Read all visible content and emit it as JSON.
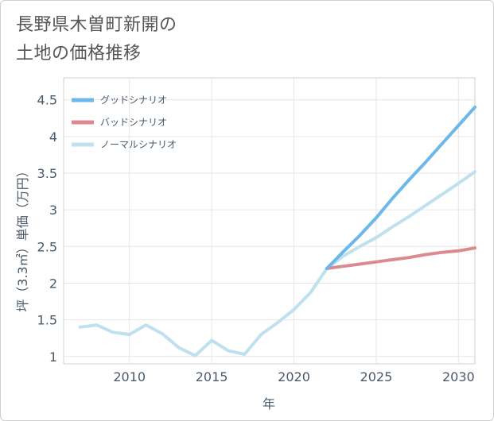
{
  "title": {
    "line1": "長野県木曽町新開の",
    "line2": "土地の価格推移"
  },
  "chart_data": {
    "type": "line",
    "xlabel": "年",
    "ylabel": "坪（3.3㎡）単価（万円）",
    "xlim": [
      2006,
      2031
    ],
    "ylim": [
      0.9,
      4.8
    ],
    "x_ticks": [
      2010,
      2015,
      2020,
      2025,
      2030
    ],
    "y_ticks": [
      1,
      1.5,
      2,
      2.5,
      3,
      3.5,
      4,
      4.5
    ],
    "grid": true,
    "legend_position": "top-left",
    "series": [
      {
        "name": "グッドシナリオ",
        "color": "#6cb8ea",
        "x": [
          2022,
          2023,
          2024,
          2025,
          2026,
          2027,
          2028,
          2029,
          2030,
          2031
        ],
        "y": [
          2.2,
          2.43,
          2.65,
          2.89,
          3.16,
          3.41,
          3.65,
          3.9,
          4.15,
          4.4
        ]
      },
      {
        "name": "バッドシナリオ",
        "color": "#db8a92",
        "x": [
          2022,
          2023,
          2024,
          2025,
          2026,
          2027,
          2028,
          2029,
          2030,
          2031
        ],
        "y": [
          2.2,
          2.23,
          2.26,
          2.29,
          2.32,
          2.35,
          2.39,
          2.42,
          2.44,
          2.48
        ]
      },
      {
        "name": "ノーマルシナリオ",
        "color": "#bfe0ee",
        "x": [
          2007,
          2008,
          2009,
          2010,
          2011,
          2012,
          2013,
          2014,
          2015,
          2016,
          2017,
          2018,
          2019,
          2020,
          2021,
          2022,
          2023,
          2024,
          2025,
          2026,
          2027,
          2028,
          2029,
          2030,
          2031
        ],
        "y": [
          1.4,
          1.43,
          1.33,
          1.3,
          1.43,
          1.31,
          1.12,
          1.01,
          1.22,
          1.08,
          1.03,
          1.3,
          1.46,
          1.64,
          1.87,
          2.2,
          2.37,
          2.5,
          2.62,
          2.77,
          2.91,
          3.06,
          3.21,
          3.36,
          3.52
        ]
      }
    ]
  }
}
